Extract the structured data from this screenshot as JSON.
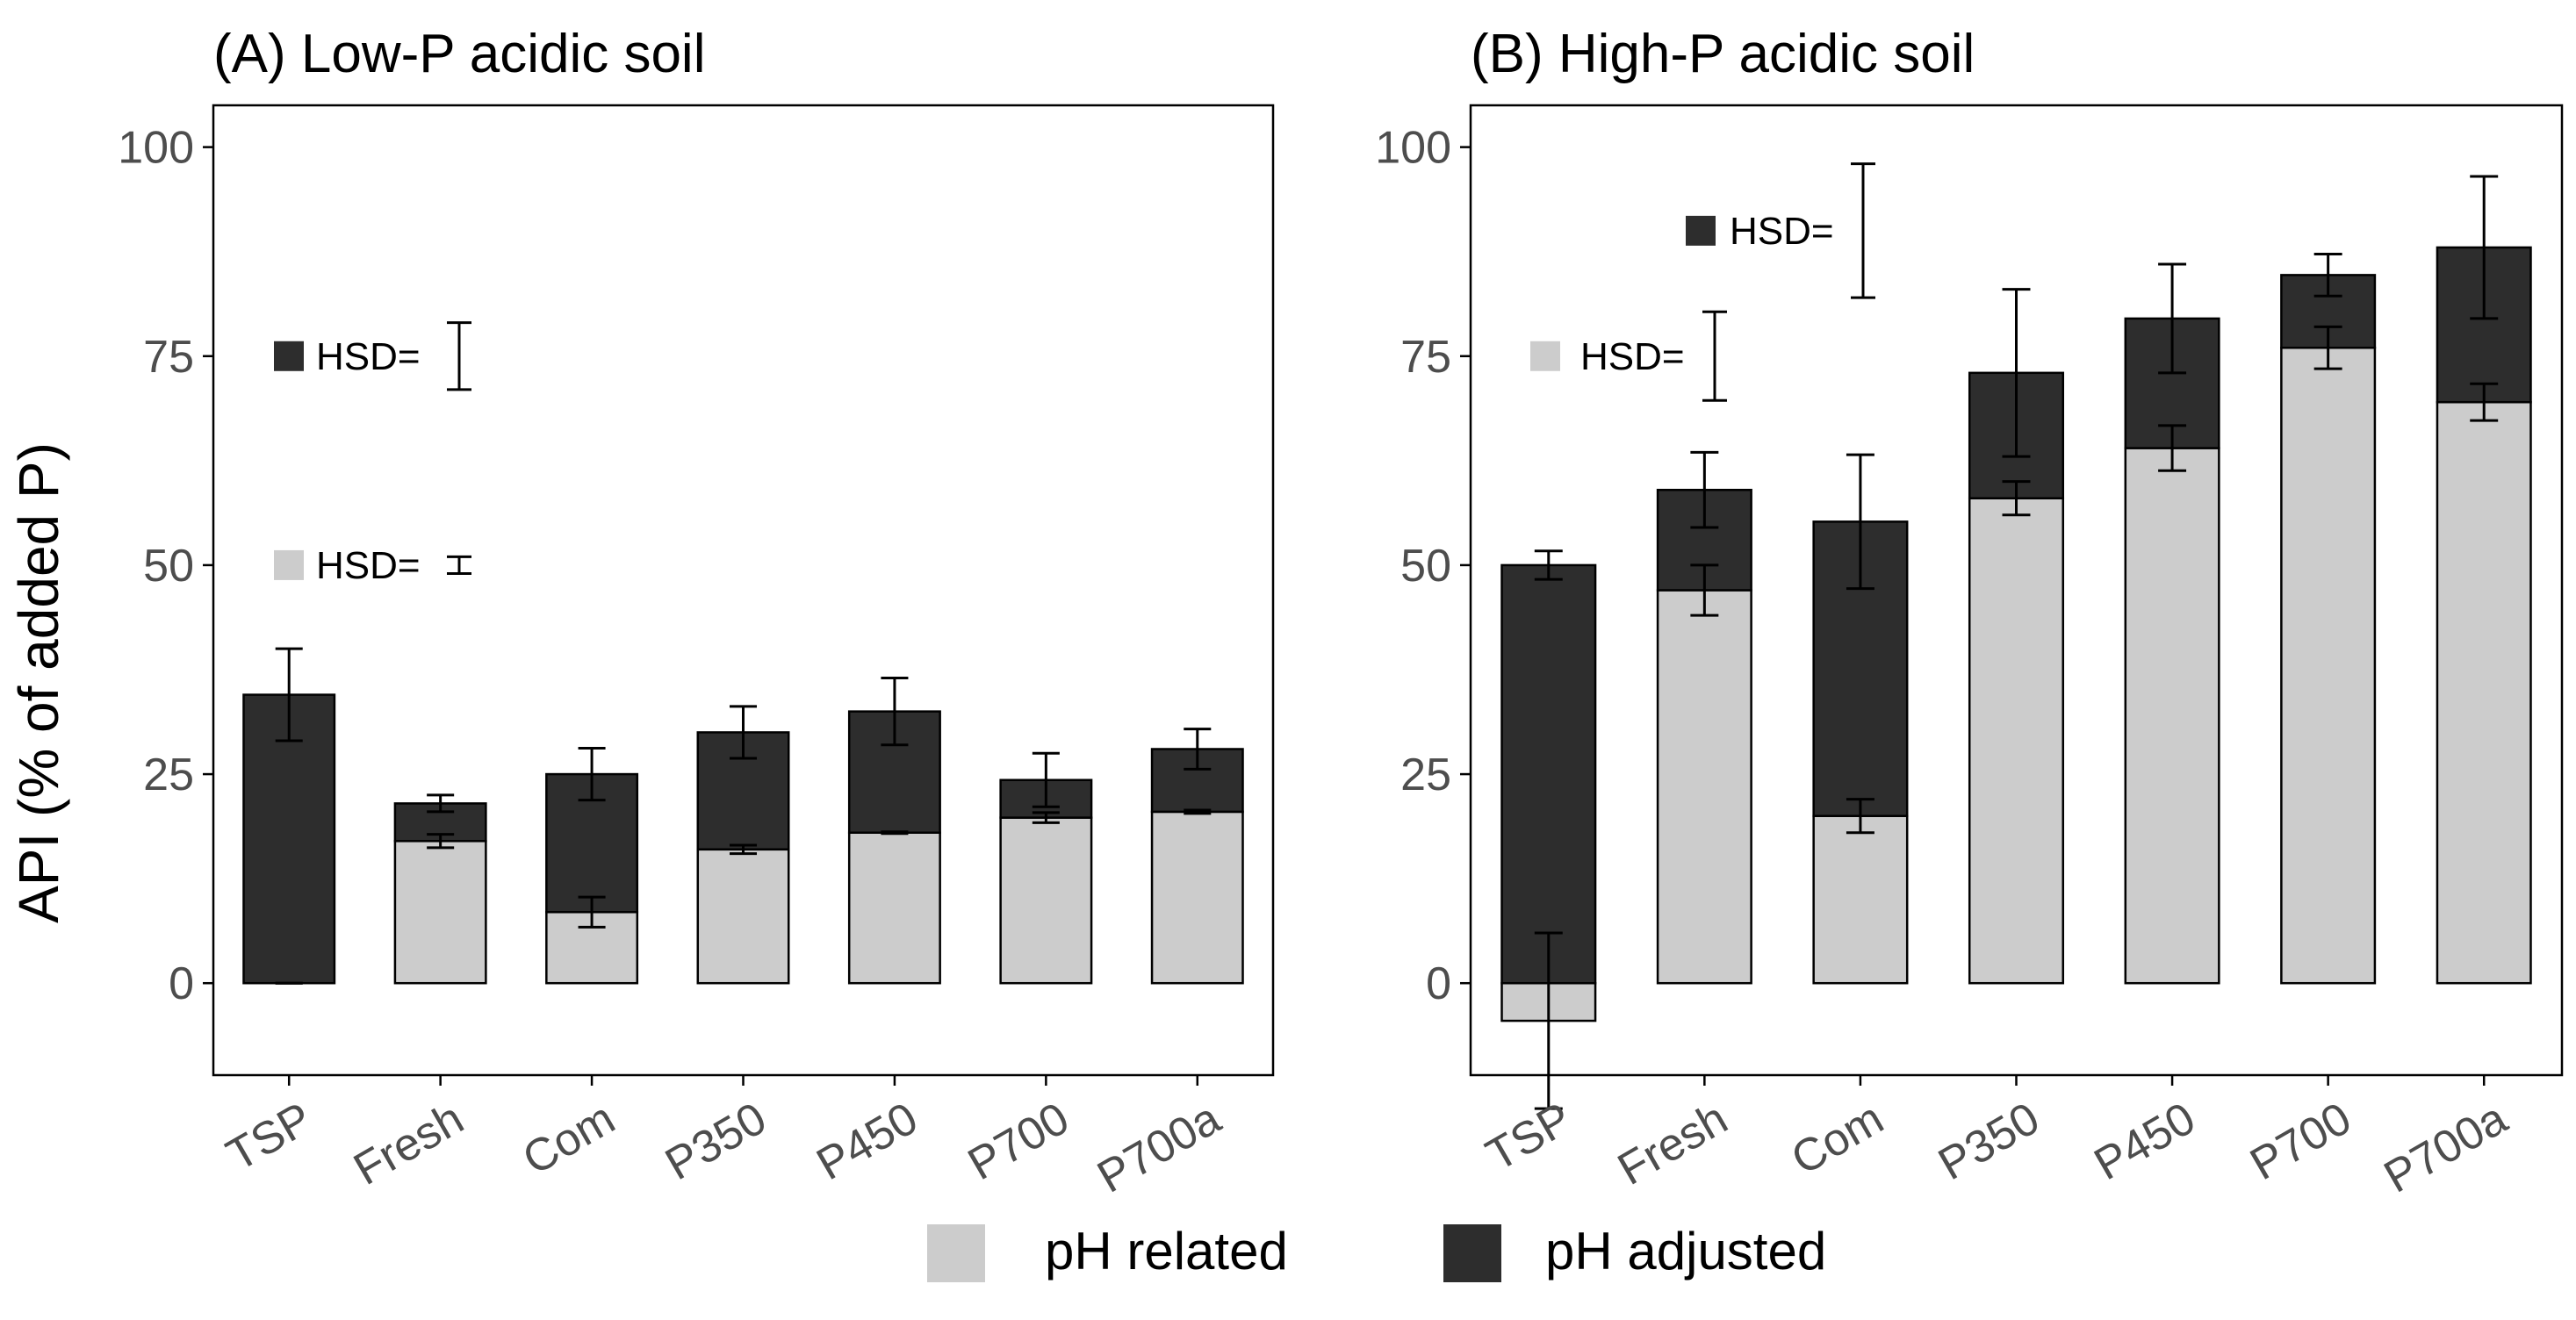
{
  "colors": {
    "ph_related": "#cccccc",
    "ph_adjusted": "#2d2d2d",
    "axis": "#000000",
    "tick_text": "#4d4d4d",
    "background": "#ffffff"
  },
  "y_axis_label": "API (% of added P)",
  "legend": {
    "items": [
      {
        "key": "ph_related",
        "label": "pH related",
        "color": "#cccccc"
      },
      {
        "key": "ph_adjusted",
        "label": "pH adjusted",
        "color": "#2d2d2d"
      }
    ]
  },
  "chart_data": [
    {
      "type": "bar",
      "stacked": true,
      "title": "(A) Low-P acidic soil",
      "categories": [
        "TSP",
        "Fresh",
        "Com",
        "P350",
        "P450",
        "P700",
        "P700a"
      ],
      "ylabel": "API (% of added P)",
      "ylim": [
        -11,
        105
      ],
      "yticks": [
        0,
        25,
        50,
        75,
        100
      ],
      "series": [
        {
          "name": "pH related",
          "values": [
            0,
            17,
            8.5,
            16,
            18,
            19.8,
            20.5
          ],
          "error": [
            0,
            0.8,
            1.8,
            0.5,
            0.1,
            0.6,
            0.2
          ]
        },
        {
          "name": "pH adjusted",
          "values": [
            34.5,
            4.5,
            16.5,
            14,
            14.5,
            4.5,
            7.5
          ],
          "error": [
            5.5,
            1,
            3.1,
            3.1,
            4,
            3.2,
            2.4
          ]
        }
      ],
      "hsd": [
        {
          "series": "pH adjusted",
          "label": "HSD=",
          "center": 75,
          "half_range": 4
        },
        {
          "series": "pH related",
          "label": "HSD=",
          "center": 50,
          "half_range": 1
        }
      ]
    },
    {
      "type": "bar",
      "stacked": true,
      "title": "(B) High-P acidic soil",
      "categories": [
        "TSP",
        "Fresh",
        "Com",
        "P350",
        "P450",
        "P700",
        "P700a"
      ],
      "ylabel": "API (% of added P)",
      "ylim": [
        -11,
        105
      ],
      "yticks": [
        0,
        25,
        50,
        75,
        100
      ],
      "series": [
        {
          "name": "pH related",
          "values": [
            -4.5,
            47,
            20,
            58,
            64,
            76,
            69.5
          ],
          "error": [
            10.5,
            3,
            2,
            2,
            2.7,
            2.5,
            2.2
          ]
        },
        {
          "name": "pH adjusted",
          "values": [
            50,
            12,
            35.2,
            15,
            15.5,
            8.7,
            18.5
          ],
          "error": [
            1.7,
            4.5,
            8,
            10,
            6.5,
            2.5,
            8.5
          ]
        }
      ],
      "hsd": [
        {
          "series": "pH adjusted",
          "label": "HSD=",
          "center": 90,
          "half_range": 8
        },
        {
          "series": "pH related",
          "label": "HSD=",
          "center": 75,
          "half_range": 5.3
        }
      ]
    }
  ]
}
